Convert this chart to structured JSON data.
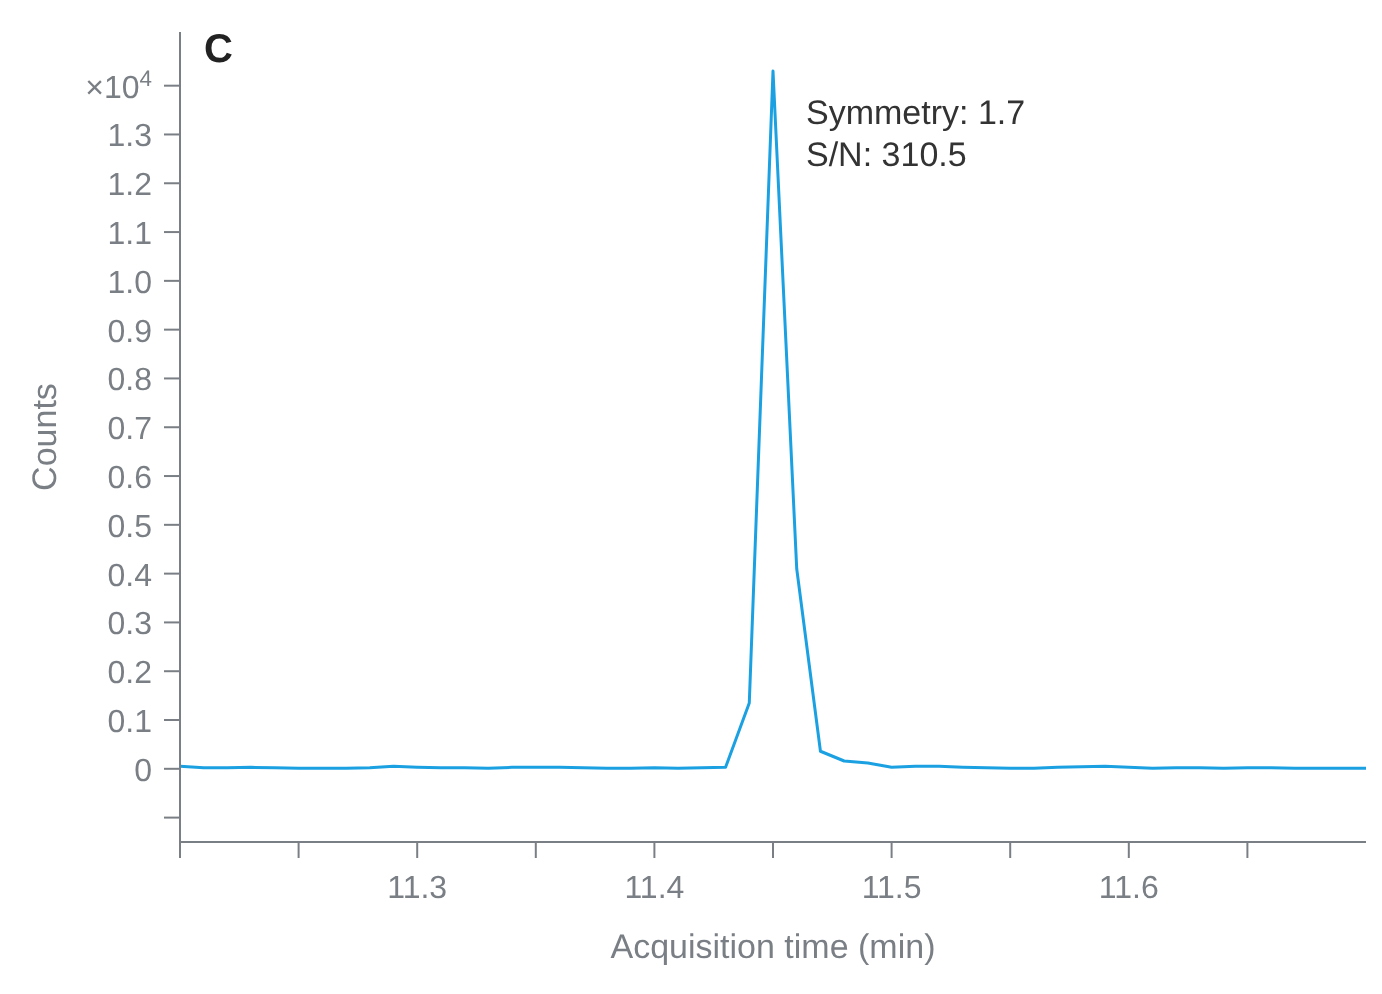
{
  "chart_data": {
    "type": "line",
    "title": "C",
    "xlabel": "Acquisition time (min)",
    "ylabel": "Counts",
    "annotations": [
      "Symmetry: 1.7",
      "S/N: 310.5"
    ],
    "x": [
      11.2,
      11.21,
      11.22,
      11.23,
      11.24,
      11.25,
      11.26,
      11.27,
      11.28,
      11.29,
      11.3,
      11.31,
      11.32,
      11.33,
      11.34,
      11.35,
      11.36,
      11.37,
      11.38,
      11.39,
      11.4,
      11.41,
      11.42,
      11.43,
      11.44,
      11.45,
      11.46,
      11.47,
      11.48,
      11.49,
      11.5,
      11.51,
      11.52,
      11.53,
      11.54,
      11.55,
      11.56,
      11.57,
      11.58,
      11.59,
      11.6,
      11.61,
      11.62,
      11.63,
      11.64,
      11.65,
      11.66,
      11.67,
      11.68,
      11.69,
      11.7
    ],
    "series": [
      {
        "color": "#1ba1e2",
        "values": [
          0.005,
          0.002,
          0.002,
          0.003,
          0.002,
          0.001,
          0.001,
          0.001,
          0.002,
          0.005,
          0.003,
          0.002,
          0.002,
          0.001,
          0.003,
          0.003,
          0.003,
          0.002,
          0.001,
          0.001,
          0.002,
          0.001,
          0.002,
          0.003,
          0.135,
          1.43,
          0.41,
          0.036,
          0.016,
          0.012,
          0.003,
          0.005,
          0.005,
          0.003,
          0.002,
          0.001,
          0.001,
          0.003,
          0.004,
          0.005,
          0.003,
          0.001,
          0.002,
          0.002,
          0.001,
          0.002,
          0.002,
          0.001,
          0.001,
          0.001,
          0.001
        ]
      }
    ],
    "xlim": [
      11.2,
      11.7
    ],
    "xticks": [
      {
        "value": 11.2,
        "label": null
      },
      {
        "value": 11.25,
        "label": null
      },
      11.3,
      {
        "value": 11.35,
        "label": null
      },
      11.4,
      {
        "value": 11.45,
        "label": null
      },
      11.5,
      {
        "value": 11.55,
        "label": null
      },
      11.6,
      {
        "value": 11.65,
        "label": null
      }
    ],
    "ylim": [
      -0.15,
      1.51
    ],
    "yticks": [
      {
        "value": -0.1,
        "label": null
      },
      0,
      0.1,
      0.2,
      0.3,
      0.4,
      0.5,
      0.6,
      0.7,
      0.8,
      0.9,
      {
        "value": 1,
        "label": "1.0"
      },
      1.1,
      1.2,
      1.3,
      {
        "value": 1.4,
        "label": "×10$^{4}$"
      }
    ],
    "grid": false,
    "legend": false,
    "marker": "none",
    "line_style": "solid"
  }
}
